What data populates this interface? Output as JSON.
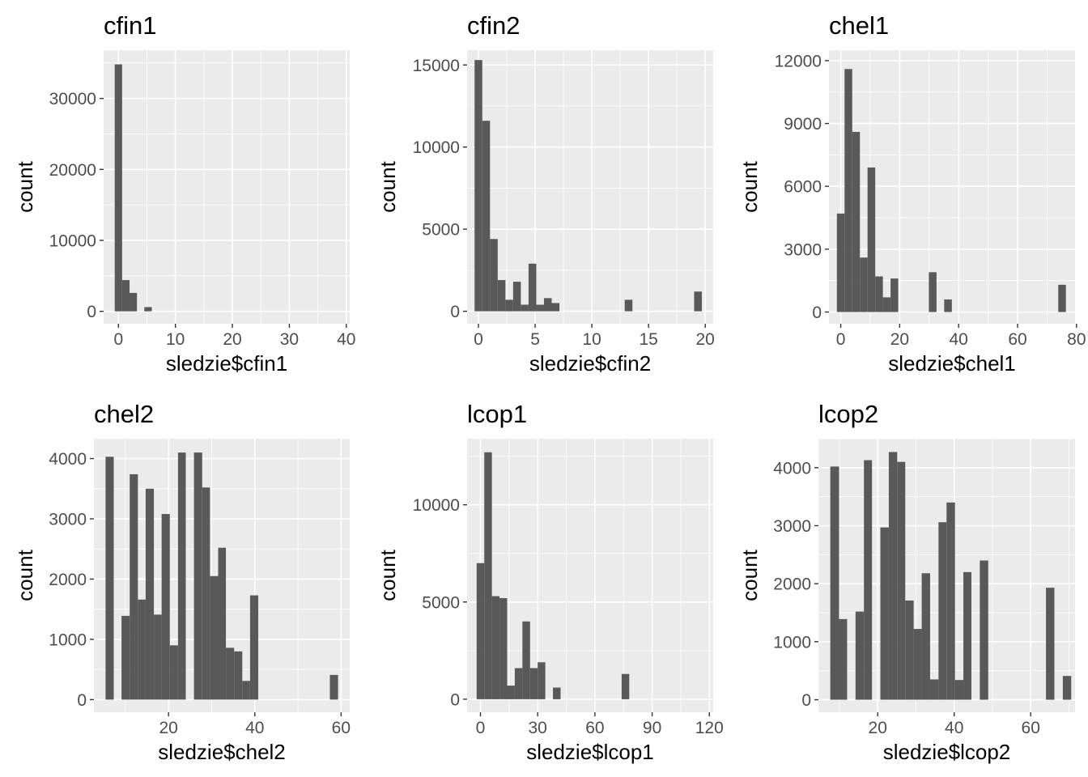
{
  "chart_data": [
    {
      "type": "bar",
      "title": "cfin1",
      "xlabel": "sledzie$cfin1",
      "ylabel": "count",
      "xlim": [
        -2.6,
        40.6
      ],
      "ylim": [
        -1750,
        36800
      ],
      "xticks": [
        0,
        10,
        20,
        30,
        40
      ],
      "yticks": [
        0,
        10000,
        20000,
        30000
      ],
      "bins": [
        {
          "x0": -0.65,
          "x1": 0.65,
          "y": 34800
        },
        {
          "x0": 0.65,
          "x1": 1.95,
          "y": 4400
        },
        {
          "x0": 1.95,
          "x1": 3.25,
          "y": 2600
        },
        {
          "x0": 4.55,
          "x1": 5.85,
          "y": 600
        }
      ]
    },
    {
      "type": "bar",
      "title": "cfin2",
      "xlabel": "sledzie$cfin2",
      "ylabel": "count",
      "xlim": [
        -1.0,
        20.7
      ],
      "ylim": [
        -760,
        15900
      ],
      "xticks": [
        0,
        5,
        10,
        15,
        20
      ],
      "yticks": [
        0,
        5000,
        10000,
        15000
      ],
      "bins": [
        {
          "x0": -0.34,
          "x1": 0.34,
          "y": 15300
        },
        {
          "x0": 0.34,
          "x1": 1.02,
          "y": 11600
        },
        {
          "x0": 1.02,
          "x1": 1.7,
          "y": 4400
        },
        {
          "x0": 1.7,
          "x1": 2.38,
          "y": 1900
        },
        {
          "x0": 2.38,
          "x1": 3.06,
          "y": 700
        },
        {
          "x0": 3.06,
          "x1": 3.74,
          "y": 1800
        },
        {
          "x0": 3.74,
          "x1": 4.42,
          "y": 400
        },
        {
          "x0": 4.42,
          "x1": 5.1,
          "y": 2900
        },
        {
          "x0": 5.1,
          "x1": 5.78,
          "y": 400
        },
        {
          "x0": 5.78,
          "x1": 6.46,
          "y": 800
        },
        {
          "x0": 6.46,
          "x1": 7.14,
          "y": 500
        },
        {
          "x0": 12.9,
          "x1": 13.58,
          "y": 700
        },
        {
          "x0": 19.02,
          "x1": 19.7,
          "y": 1200
        }
      ]
    },
    {
      "type": "bar",
      "title": "chel1",
      "xlabel": "sledzie$chel1",
      "ylabel": "count",
      "xlim": [
        -4.0,
        79.5
      ],
      "ylim": [
        -560,
        12500
      ],
      "xticks": [
        0,
        20,
        40,
        60,
        80
      ],
      "yticks": [
        0,
        3000,
        6000,
        9000,
        12000
      ],
      "bins": [
        {
          "x0": -1.3,
          "x1": 1.3,
          "y": 4700
        },
        {
          "x0": 1.3,
          "x1": 3.9,
          "y": 11600
        },
        {
          "x0": 3.9,
          "x1": 6.5,
          "y": 8600
        },
        {
          "x0": 6.5,
          "x1": 9.1,
          "y": 2600
        },
        {
          "x0": 9.1,
          "x1": 11.7,
          "y": 6900
        },
        {
          "x0": 11.7,
          "x1": 14.3,
          "y": 1700
        },
        {
          "x0": 14.3,
          "x1": 16.9,
          "y": 700
        },
        {
          "x0": 16.9,
          "x1": 19.5,
          "y": 1600
        },
        {
          "x0": 29.9,
          "x1": 32.5,
          "y": 1900
        },
        {
          "x0": 35.1,
          "x1": 37.7,
          "y": 600
        },
        {
          "x0": 73.8,
          "x1": 76.4,
          "y": 1300
        }
      ]
    },
    {
      "type": "bar",
      "title": "chel2",
      "xlabel": "sledzie$chel2",
      "ylabel": "count",
      "xlim": [
        2.7,
        62.0
      ],
      "ylim": [
        -210,
        4330
      ],
      "xticks": [
        20,
        40,
        60
      ],
      "yticks": [
        0,
        1000,
        2000,
        3000,
        4000
      ],
      "bins": [
        {
          "x0": 5.4,
          "x1": 7.3,
          "y": 4030
        },
        {
          "x0": 9.1,
          "x1": 11.0,
          "y": 1390
        },
        {
          "x0": 11.0,
          "x1": 12.9,
          "y": 3740
        },
        {
          "x0": 12.9,
          "x1": 14.7,
          "y": 1660
        },
        {
          "x0": 14.7,
          "x1": 16.6,
          "y": 3500
        },
        {
          "x0": 16.6,
          "x1": 18.4,
          "y": 1410
        },
        {
          "x0": 18.4,
          "x1": 20.3,
          "y": 3080
        },
        {
          "x0": 20.3,
          "x1": 22.2,
          "y": 900
        },
        {
          "x0": 22.2,
          "x1": 24.0,
          "y": 4100
        },
        {
          "x0": 25.9,
          "x1": 27.8,
          "y": 4100
        },
        {
          "x0": 27.8,
          "x1": 29.6,
          "y": 3520
        },
        {
          "x0": 29.6,
          "x1": 31.5,
          "y": 2050
        },
        {
          "x0": 31.5,
          "x1": 33.3,
          "y": 2520
        },
        {
          "x0": 33.3,
          "x1": 35.2,
          "y": 860
        },
        {
          "x0": 35.2,
          "x1": 37.1,
          "y": 800
        },
        {
          "x0": 37.1,
          "x1": 38.9,
          "y": 310
        },
        {
          "x0": 38.9,
          "x1": 40.8,
          "y": 1730
        },
        {
          "x0": 57.4,
          "x1": 59.3,
          "y": 410
        }
      ]
    },
    {
      "type": "bar",
      "title": "lcop1",
      "xlabel": "sledzie$lcop1",
      "ylabel": "count",
      "xlim": [
        -7.0,
        122.0
      ],
      "ylim": [
        -670,
        13400
      ],
      "xticks": [
        0,
        30,
        60,
        90,
        120
      ],
      "yticks": [
        0,
        5000,
        10000
      ],
      "bins": [
        {
          "x0": -2.0,
          "x1": 2.0,
          "y": 7000
        },
        {
          "x0": 2.0,
          "x1": 6.0,
          "y": 12700
        },
        {
          "x0": 6.0,
          "x1": 10.0,
          "y": 5300
        },
        {
          "x0": 10.0,
          "x1": 14.0,
          "y": 5200
        },
        {
          "x0": 14.0,
          "x1": 18.0,
          "y": 700
        },
        {
          "x0": 18.0,
          "x1": 22.0,
          "y": 1600
        },
        {
          "x0": 22.0,
          "x1": 26.0,
          "y": 4000
        },
        {
          "x0": 26.0,
          "x1": 30.0,
          "y": 1600
        },
        {
          "x0": 30.0,
          "x1": 34.0,
          "y": 1900
        },
        {
          "x0": 38.0,
          "x1": 42.0,
          "y": 600
        },
        {
          "x0": 74.0,
          "x1": 78.0,
          "y": 1300
        }
      ]
    },
    {
      "type": "bar",
      "title": "lcop2",
      "xlabel": "sledzie$lcop2",
      "ylabel": "count",
      "xlim": [
        4.5,
        71.6
      ],
      "ylim": [
        -216,
        4500
      ],
      "xticks": [
        20,
        40,
        60
      ],
      "yticks": [
        0,
        1000,
        2000,
        3000,
        4000
      ],
      "bins": [
        {
          "x0": 7.6,
          "x1": 9.9,
          "y": 4020
        },
        {
          "x0": 9.9,
          "x1": 12.0,
          "y": 1390
        },
        {
          "x0": 14.2,
          "x1": 16.4,
          "y": 1520
        },
        {
          "x0": 16.4,
          "x1": 18.5,
          "y": 4130
        },
        {
          "x0": 20.7,
          "x1": 22.9,
          "y": 2970
        },
        {
          "x0": 22.9,
          "x1": 25.1,
          "y": 4270
        },
        {
          "x0": 25.1,
          "x1": 27.2,
          "y": 4100
        },
        {
          "x0": 27.2,
          "x1": 29.4,
          "y": 1710
        },
        {
          "x0": 29.4,
          "x1": 31.5,
          "y": 1220
        },
        {
          "x0": 31.5,
          "x1": 33.7,
          "y": 2180
        },
        {
          "x0": 33.7,
          "x1": 35.9,
          "y": 350
        },
        {
          "x0": 35.9,
          "x1": 38.0,
          "y": 3060
        },
        {
          "x0": 38.0,
          "x1": 40.2,
          "y": 3400
        },
        {
          "x0": 40.2,
          "x1": 42.4,
          "y": 340
        },
        {
          "x0": 42.4,
          "x1": 44.5,
          "y": 2200
        },
        {
          "x0": 46.7,
          "x1": 48.9,
          "y": 2400
        },
        {
          "x0": 64.0,
          "x1": 66.2,
          "y": 1930
        },
        {
          "x0": 68.4,
          "x1": 70.6,
          "y": 410
        }
      ]
    }
  ]
}
